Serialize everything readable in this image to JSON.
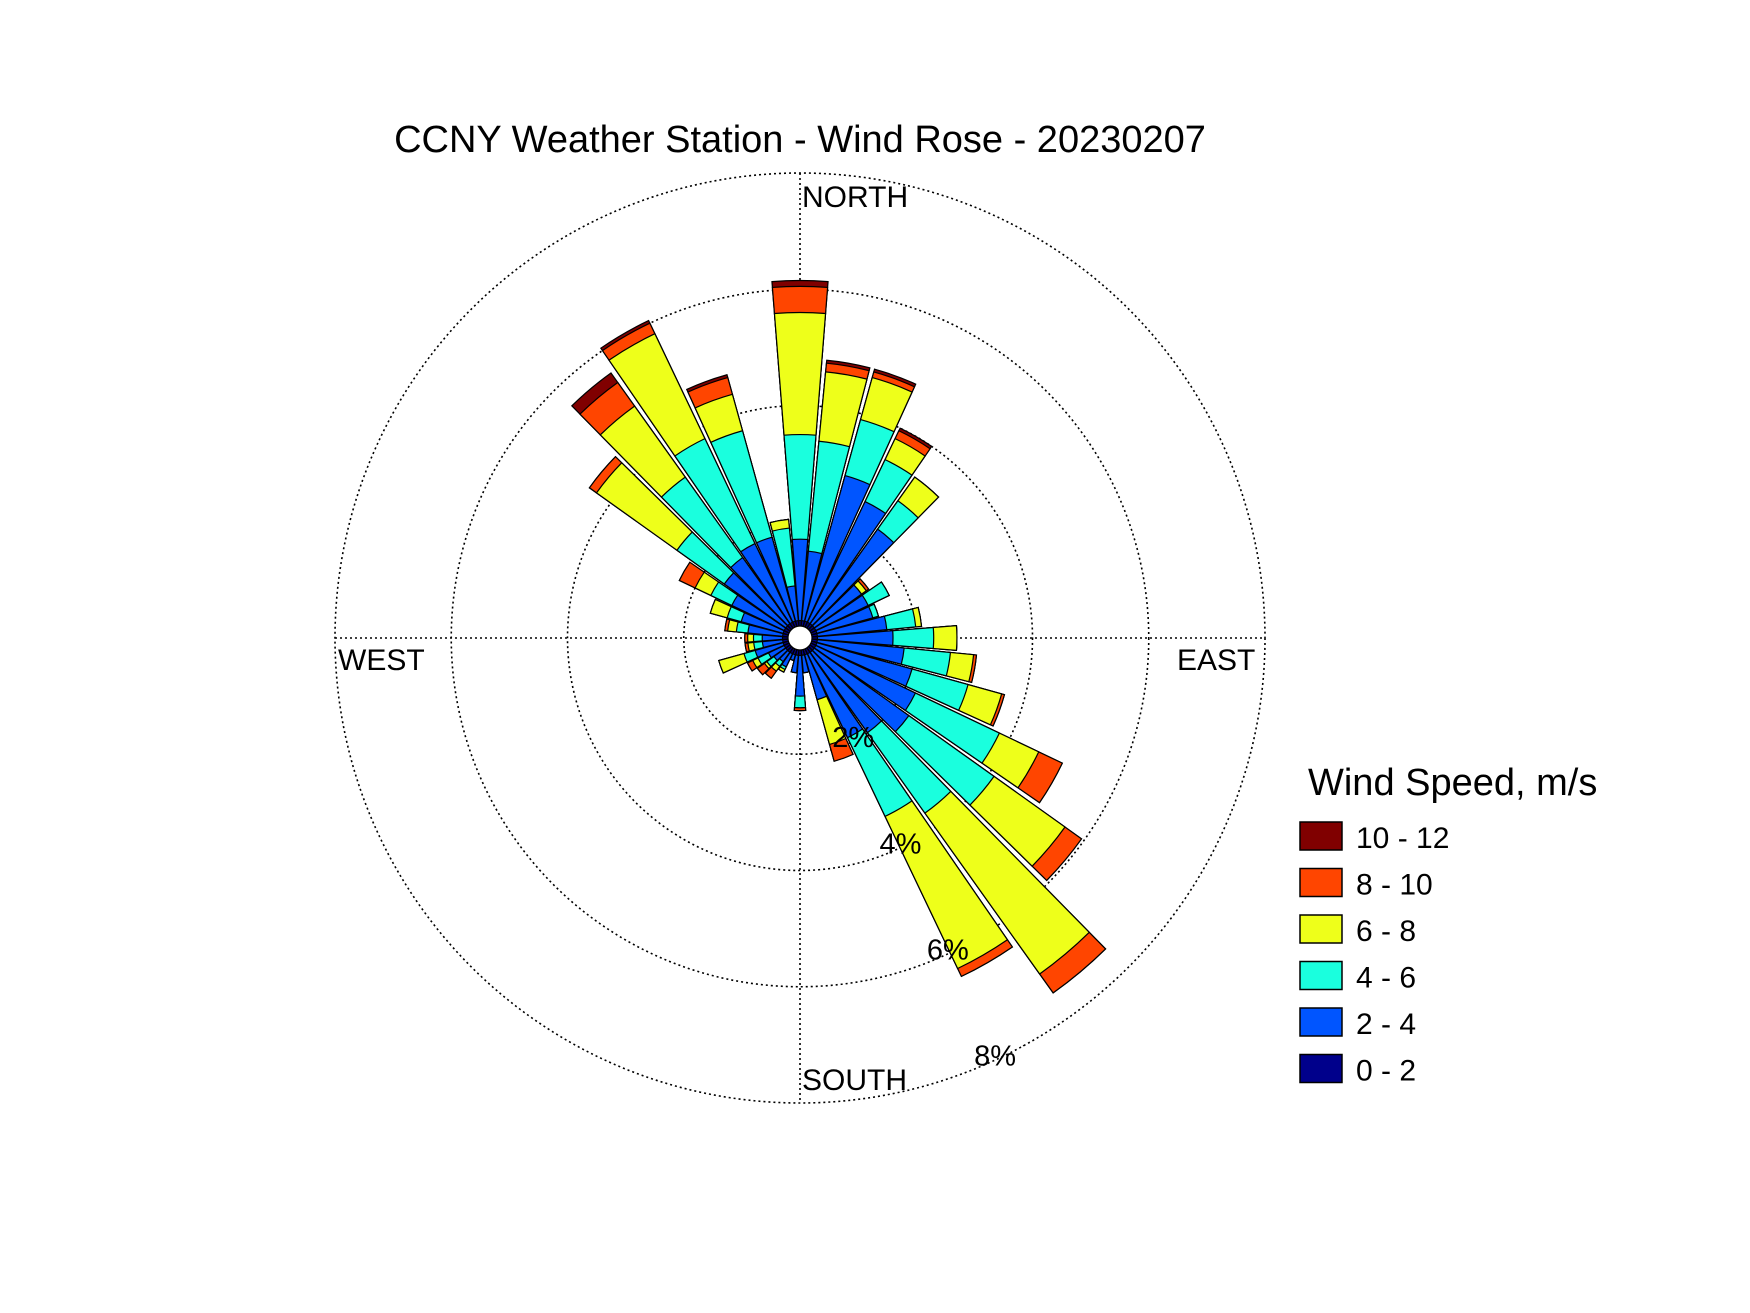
{
  "chart_data": {
    "type": "wind-rose",
    "title": "CCNY Weather Station - Wind Rose - 20230207",
    "direction_labels": {
      "north": "NORTH",
      "east": "EAST",
      "south": "SOUTH",
      "west": "WEST"
    },
    "ring_labels": [
      "2%",
      "4%",
      "6%",
      "8%"
    ],
    "r_max_percent": 8,
    "grid": true,
    "legend": {
      "title": "Wind Speed, m/s",
      "placement": "right",
      "bins": [
        "10 - 12",
        "8 - 10",
        "6 - 8",
        "4 - 6",
        "2 - 4",
        "0 - 2"
      ],
      "colors": [
        "#800000",
        "#FF4500",
        "#EEFF1A",
        "#1AFFDE",
        "#0055FF",
        "#00008B"
      ]
    },
    "bin_order": [
      "0 - 2",
      "2 - 4",
      "4 - 6",
      "6 - 8",
      "8 - 10",
      "10 - 12"
    ],
    "sector_width_deg": 10,
    "sectors": [
      {
        "dir": 0,
        "cumulative": [
          0.3,
          1.7,
          3.5,
          5.6,
          6.05,
          6.15
        ]
      },
      {
        "dir": 10,
        "cumulative": [
          0.3,
          1.5,
          3.4,
          4.6,
          4.75,
          4.8
        ]
      },
      {
        "dir": 20,
        "cumulative": [
          0.3,
          2.9,
          3.9,
          4.65,
          4.75,
          4.8
        ]
      },
      {
        "dir": 30,
        "cumulative": [
          0.3,
          2.6,
          3.4,
          3.8,
          3.95,
          4.0
        ]
      },
      {
        "dir": 40,
        "cumulative": [
          0.3,
          2.3,
          2.9,
          3.4,
          3.4,
          3.4
        ]
      },
      {
        "dir": 50,
        "cumulative": [
          0.3,
          1.3,
          1.3,
          1.4,
          1.45,
          1.45
        ]
      },
      {
        "dir": 60,
        "cumulative": [
          0.3,
          1.3,
          1.7,
          1.7,
          1.7,
          1.7
        ]
      },
      {
        "dir": 70,
        "cumulative": [
          0.3,
          1.3,
          1.4,
          1.4,
          1.4,
          1.4
        ]
      },
      {
        "dir": 80,
        "cumulative": [
          0.3,
          1.5,
          2.0,
          2.1,
          2.1,
          2.1
        ]
      },
      {
        "dir": 90,
        "cumulative": [
          0.3,
          1.6,
          2.3,
          2.7,
          2.7,
          2.7
        ]
      },
      {
        "dir": 100,
        "cumulative": [
          0.3,
          1.8,
          2.6,
          3.0,
          3.05,
          3.05
        ]
      },
      {
        "dir": 110,
        "cumulative": [
          0.3,
          2.0,
          3.0,
          3.6,
          3.65,
          3.65
        ]
      },
      {
        "dir": 120,
        "cumulative": [
          0.3,
          2.2,
          3.8,
          4.55,
          5.0,
          5.0
        ]
      },
      {
        "dir": 130,
        "cumulative": [
          0.3,
          2.3,
          4.1,
          5.6,
          5.95,
          5.95
        ]
      },
      {
        "dir": 140,
        "cumulative": [
          0.3,
          2.0,
          3.7,
          7.1,
          7.5,
          7.5
        ]
      },
      {
        "dir": 150,
        "cumulative": [
          0.3,
          1.9,
          3.4,
          6.3,
          6.45,
          6.45
        ]
      },
      {
        "dir": 160,
        "cumulative": [
          0.3,
          1.1,
          1.1,
          1.9,
          2.2,
          2.2
        ]
      },
      {
        "dir": 170,
        "cumulative": [
          0.3,
          0.6,
          0.6,
          0.6,
          0.6,
          0.6
        ]
      },
      {
        "dir": 180,
        "cumulative": [
          0.3,
          1.0,
          1.2,
          1.2,
          1.25,
          1.25
        ]
      },
      {
        "dir": 190,
        "cumulative": [
          0.3,
          0.6,
          0.6,
          0.6,
          0.6,
          0.6
        ]
      },
      {
        "dir": 200,
        "cumulative": [
          0.3,
          0.4,
          0.4,
          0.4,
          0.4,
          0.4
        ]
      },
      {
        "dir": 210,
        "cumulative": [
          0.3,
          0.55,
          0.6,
          0.65,
          0.65,
          0.65
        ]
      },
      {
        "dir": 220,
        "cumulative": [
          0.3,
          0.5,
          0.6,
          0.7,
          0.85,
          0.85
        ]
      },
      {
        "dir": 230,
        "cumulative": [
          0.3,
          0.55,
          0.7,
          0.75,
          0.9,
          0.9
        ]
      },
      {
        "dir": 240,
        "cumulative": [
          0.3,
          0.6,
          0.8,
          0.9,
          1.0,
          1.0
        ]
      },
      {
        "dir": 250,
        "cumulative": [
          0.3,
          0.8,
          1.0,
          1.45,
          1.45,
          1.45
        ]
      },
      {
        "dir": 260,
        "cumulative": [
          0.3,
          0.65,
          0.8,
          0.9,
          0.95,
          0.95
        ]
      },
      {
        "dir": 270,
        "cumulative": [
          0.3,
          0.65,
          0.8,
          0.9,
          0.95,
          0.95
        ]
      },
      {
        "dir": 280,
        "cumulative": [
          0.3,
          0.9,
          1.1,
          1.25,
          1.3,
          1.3
        ]
      },
      {
        "dir": 290,
        "cumulative": [
          0.3,
          1.05,
          1.3,
          1.6,
          1.6,
          1.6
        ]
      },
      {
        "dir": 300,
        "cumulative": [
          0.3,
          1.3,
          1.7,
          2.0,
          2.3,
          2.3
        ]
      },
      {
        "dir": 310,
        "cumulative": [
          0.3,
          1.6,
          2.6,
          4.3,
          4.45,
          4.45
        ]
      },
      {
        "dir": 320,
        "cumulative": [
          0.3,
          1.7,
          3.4,
          4.9,
          5.4,
          5.6
        ]
      },
      {
        "dir": 330,
        "cumulative": [
          0.3,
          1.8,
          3.8,
          5.8,
          6.0,
          6.05
        ]
      },
      {
        "dir": 340,
        "cumulative": [
          0.3,
          1.8,
          3.7,
          4.35,
          4.65,
          4.7
        ]
      },
      {
        "dir": 350,
        "cumulative": [
          0.3,
          0.9,
          1.9,
          2.05,
          2.05,
          2.05
        ]
      }
    ]
  }
}
